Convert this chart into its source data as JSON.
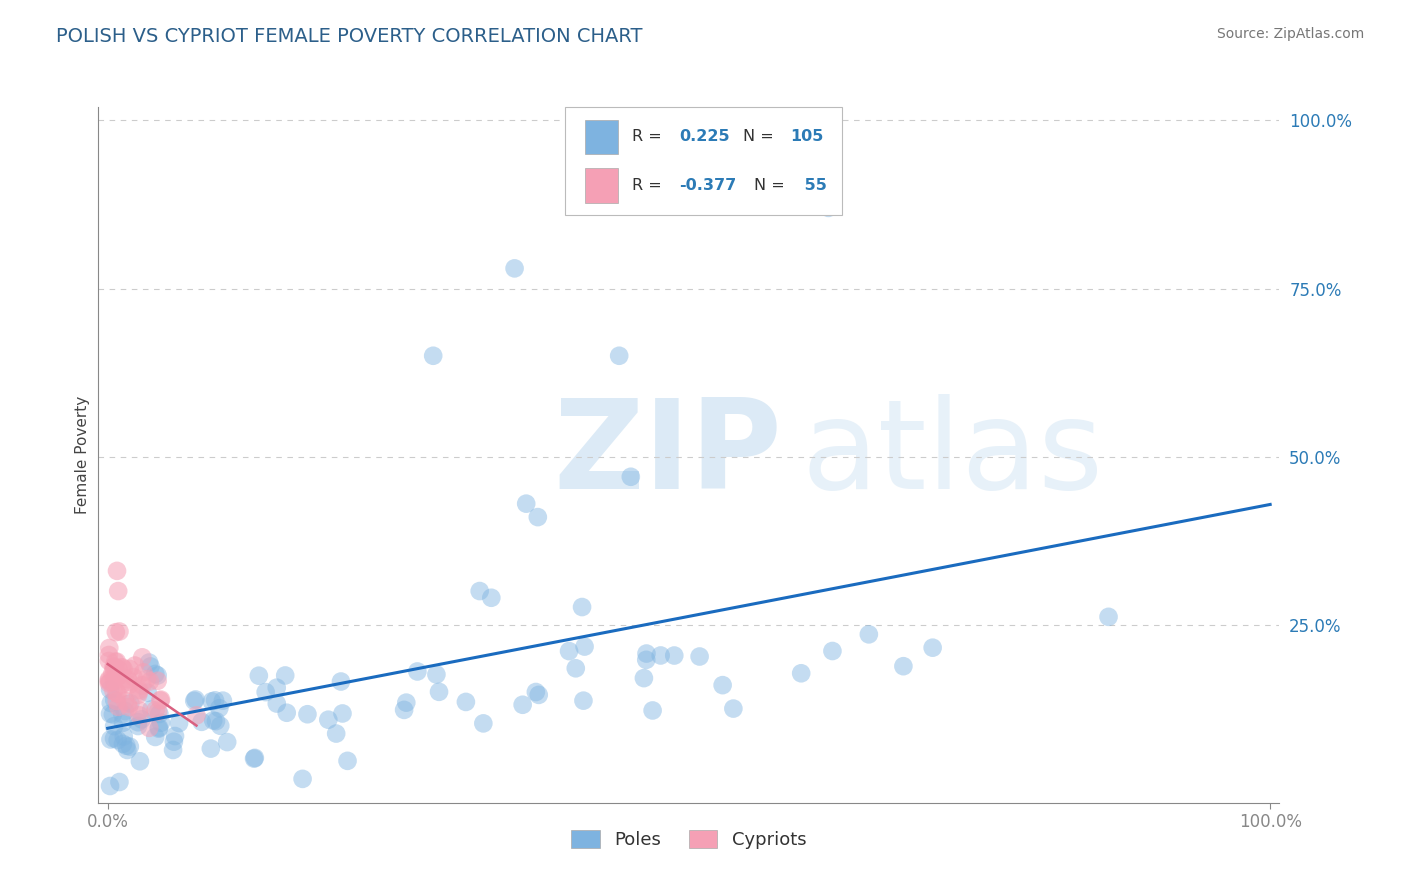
{
  "title": "POLISH VS CYPRIOT FEMALE POVERTY CORRELATION CHART",
  "source_text": "Source: ZipAtlas.com",
  "ylabel": "Female Poverty",
  "poles_color": "#7eb3e0",
  "poles_color_line": "#1a6bbf",
  "cypriots_color": "#f5a0b5",
  "cypriots_color_line": "#d96080",
  "R_poles": 0.225,
  "N_poles": 105,
  "R_cypriots": -0.377,
  "N_cypriots": 55,
  "watermark_zip": "ZIP",
  "watermark_atlas": "atlas",
  "background_color": "#ffffff",
  "grid_color": "#cccccc",
  "title_color": "#2c5f8a",
  "axis_label_color": "#2c7bb6",
  "dot_size": 180,
  "dot_alpha": 0.45
}
